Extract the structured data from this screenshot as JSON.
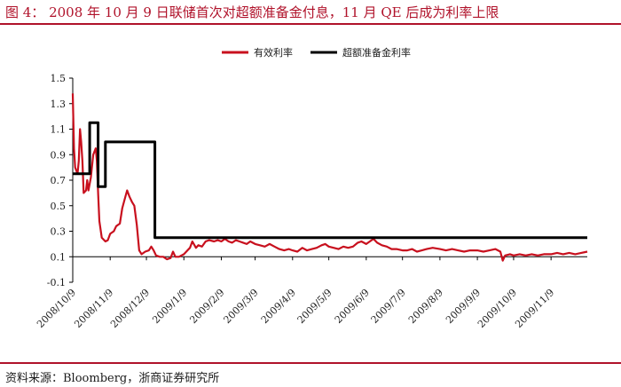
{
  "header": {
    "title": "图 4：  2008 年 10 月 9 日联储首次对超额准备金付息，11 月 QE 后成为利率上限"
  },
  "footer": {
    "source": "资料来源：Bloomberg，浙商证券研究所"
  },
  "colors": {
    "accent": "#b0122a",
    "series_red": "#c8101e",
    "series_black": "#000000"
  },
  "chart_data": {
    "type": "line",
    "title": "",
    "xlabel": "",
    "ylabel": "",
    "ylim": [
      -0.1,
      1.5
    ],
    "yticks": [
      -0.1,
      0.1,
      0.3,
      0.5,
      0.7,
      0.9,
      1.1,
      1.3,
      1.5
    ],
    "ytick_labels": [
      "-0.1",
      "0.1",
      "0.3",
      "0.5",
      "0.7",
      "0.9",
      "1.1",
      "1.3",
      "1.5"
    ],
    "xlim": [
      "2008-10-09",
      "2009-12-09"
    ],
    "xticks": [
      "2008-10-09",
      "2008-11-09",
      "2008-12-09",
      "2009-01-09",
      "2009-02-09",
      "2009-03-09",
      "2009-04-09",
      "2009-05-09",
      "2009-06-09",
      "2009-07-09",
      "2009-08-09",
      "2009-09-09",
      "2009-10-09",
      "2009-11-09"
    ],
    "xtick_labels": [
      "2008/10/9",
      "2008/11/9",
      "2008/12/9",
      "2009/1/9",
      "2009/2/9",
      "2009/3/9",
      "2009/4/9",
      "2009/5/9",
      "2009/6/9",
      "2009/7/9",
      "2009/8/9",
      "2009/9/9",
      "2009/10/9",
      "2009/11/9"
    ],
    "grid": false,
    "legend_position": "top-center",
    "series": [
      {
        "name": "有效利率",
        "color": "#c8101e",
        "points": [
          [
            "2008-10-09",
            1.38
          ],
          [
            "2008-10-10",
            0.95
          ],
          [
            "2008-10-11",
            0.8
          ],
          [
            "2008-10-13",
            0.75
          ],
          [
            "2008-10-14",
            0.85
          ],
          [
            "2008-10-15",
            1.1
          ],
          [
            "2008-10-16",
            1.0
          ],
          [
            "2008-10-17",
            0.85
          ],
          [
            "2008-10-18",
            0.6
          ],
          [
            "2008-10-20",
            0.62
          ],
          [
            "2008-10-21",
            0.7
          ],
          [
            "2008-10-22",
            0.62
          ],
          [
            "2008-10-24",
            0.72
          ],
          [
            "2008-10-26",
            0.9
          ],
          [
            "2008-10-28",
            0.95
          ],
          [
            "2008-10-29",
            0.85
          ],
          [
            "2008-10-30",
            0.6
          ],
          [
            "2008-10-31",
            0.38
          ],
          [
            "2008-11-02",
            0.25
          ],
          [
            "2008-11-05",
            0.22
          ],
          [
            "2008-11-07",
            0.23
          ],
          [
            "2008-11-09",
            0.28
          ],
          [
            "2008-11-12",
            0.3
          ],
          [
            "2008-11-14",
            0.34
          ],
          [
            "2008-11-17",
            0.36
          ],
          [
            "2008-11-19",
            0.48
          ],
          [
            "2008-11-21",
            0.55
          ],
          [
            "2008-11-23",
            0.62
          ],
          [
            "2008-11-25",
            0.57
          ],
          [
            "2008-11-27",
            0.53
          ],
          [
            "2008-11-29",
            0.5
          ],
          [
            "2008-12-01",
            0.35
          ],
          [
            "2008-12-03",
            0.15
          ],
          [
            "2008-12-05",
            0.12
          ],
          [
            "2008-12-08",
            0.14
          ],
          [
            "2008-12-11",
            0.15
          ],
          [
            "2008-12-13",
            0.18
          ],
          [
            "2008-12-15",
            0.15
          ],
          [
            "2008-12-17",
            0.11
          ],
          [
            "2008-12-20",
            0.1
          ],
          [
            "2008-12-23",
            0.1
          ],
          [
            "2008-12-26",
            0.08
          ],
          [
            "2008-12-29",
            0.09
          ],
          [
            "2008-12-31",
            0.14
          ],
          [
            "2009-01-02",
            0.1
          ],
          [
            "2009-01-05",
            0.1
          ],
          [
            "2009-01-07",
            0.11
          ],
          [
            "2009-01-09",
            0.12
          ],
          [
            "2009-01-12",
            0.15
          ],
          [
            "2009-01-14",
            0.17
          ],
          [
            "2009-01-16",
            0.22
          ],
          [
            "2009-01-19",
            0.17
          ],
          [
            "2009-01-21",
            0.19
          ],
          [
            "2009-01-24",
            0.18
          ],
          [
            "2009-01-27",
            0.22
          ],
          [
            "2009-01-30",
            0.23
          ],
          [
            "2009-02-03",
            0.22
          ],
          [
            "2009-02-06",
            0.23
          ],
          [
            "2009-02-09",
            0.22
          ],
          [
            "2009-02-12",
            0.24
          ],
          [
            "2009-02-15",
            0.22
          ],
          [
            "2009-02-18",
            0.21
          ],
          [
            "2009-02-21",
            0.23
          ],
          [
            "2009-02-24",
            0.22
          ],
          [
            "2009-02-27",
            0.21
          ],
          [
            "2009-03-02",
            0.2
          ],
          [
            "2009-03-05",
            0.22
          ],
          [
            "2009-03-09",
            0.2
          ],
          [
            "2009-03-13",
            0.19
          ],
          [
            "2009-03-17",
            0.18
          ],
          [
            "2009-03-21",
            0.2
          ],
          [
            "2009-03-25",
            0.18
          ],
          [
            "2009-03-29",
            0.16
          ],
          [
            "2009-04-02",
            0.15
          ],
          [
            "2009-04-06",
            0.16
          ],
          [
            "2009-04-09",
            0.15
          ],
          [
            "2009-04-13",
            0.14
          ],
          [
            "2009-04-17",
            0.17
          ],
          [
            "2009-04-21",
            0.15
          ],
          [
            "2009-04-25",
            0.16
          ],
          [
            "2009-04-29",
            0.17
          ],
          [
            "2009-05-03",
            0.19
          ],
          [
            "2009-05-06",
            0.2
          ],
          [
            "2009-05-09",
            0.18
          ],
          [
            "2009-05-13",
            0.17
          ],
          [
            "2009-05-17",
            0.16
          ],
          [
            "2009-05-21",
            0.18
          ],
          [
            "2009-05-25",
            0.17
          ],
          [
            "2009-05-29",
            0.18
          ],
          [
            "2009-06-02",
            0.21
          ],
          [
            "2009-06-05",
            0.22
          ],
          [
            "2009-06-09",
            0.2
          ],
          [
            "2009-06-12",
            0.22
          ],
          [
            "2009-06-15",
            0.24
          ],
          [
            "2009-06-18",
            0.21
          ],
          [
            "2009-06-22",
            0.19
          ],
          [
            "2009-06-26",
            0.18
          ],
          [
            "2009-06-30",
            0.16
          ],
          [
            "2009-07-04",
            0.16
          ],
          [
            "2009-07-09",
            0.15
          ],
          [
            "2009-07-13",
            0.15
          ],
          [
            "2009-07-17",
            0.16
          ],
          [
            "2009-07-21",
            0.14
          ],
          [
            "2009-07-25",
            0.15
          ],
          [
            "2009-07-29",
            0.16
          ],
          [
            "2009-08-03",
            0.17
          ],
          [
            "2009-08-09",
            0.16
          ],
          [
            "2009-08-14",
            0.15
          ],
          [
            "2009-08-19",
            0.16
          ],
          [
            "2009-08-24",
            0.15
          ],
          [
            "2009-08-29",
            0.14
          ],
          [
            "2009-09-03",
            0.15
          ],
          [
            "2009-09-09",
            0.15
          ],
          [
            "2009-09-14",
            0.14
          ],
          [
            "2009-09-19",
            0.15
          ],
          [
            "2009-09-24",
            0.16
          ],
          [
            "2009-09-28",
            0.14
          ],
          [
            "2009-09-30",
            0.07
          ],
          [
            "2009-10-02",
            0.11
          ],
          [
            "2009-10-06",
            0.12
          ],
          [
            "2009-10-09",
            0.11
          ],
          [
            "2009-10-14",
            0.12
          ],
          [
            "2009-10-19",
            0.11
          ],
          [
            "2009-10-24",
            0.12
          ],
          [
            "2009-10-29",
            0.11
          ],
          [
            "2009-11-03",
            0.12
          ],
          [
            "2009-11-09",
            0.12
          ],
          [
            "2009-11-14",
            0.13
          ],
          [
            "2009-11-19",
            0.12
          ],
          [
            "2009-11-24",
            0.13
          ],
          [
            "2009-11-29",
            0.12
          ],
          [
            "2009-12-04",
            0.13
          ],
          [
            "2009-12-09",
            0.14
          ]
        ]
      },
      {
        "name": "超额准备金利率",
        "color": "#000000",
        "points": [
          [
            "2008-10-09",
            0.75
          ],
          [
            "2008-10-23",
            0.75
          ],
          [
            "2008-10-23",
            1.15
          ],
          [
            "2008-10-30",
            1.15
          ],
          [
            "2008-10-30",
            0.65
          ],
          [
            "2008-11-05",
            0.65
          ],
          [
            "2008-11-05",
            1.0
          ],
          [
            "2008-12-16",
            1.0
          ],
          [
            "2008-12-16",
            0.25
          ],
          [
            "2009-12-09",
            0.25
          ]
        ]
      }
    ]
  }
}
